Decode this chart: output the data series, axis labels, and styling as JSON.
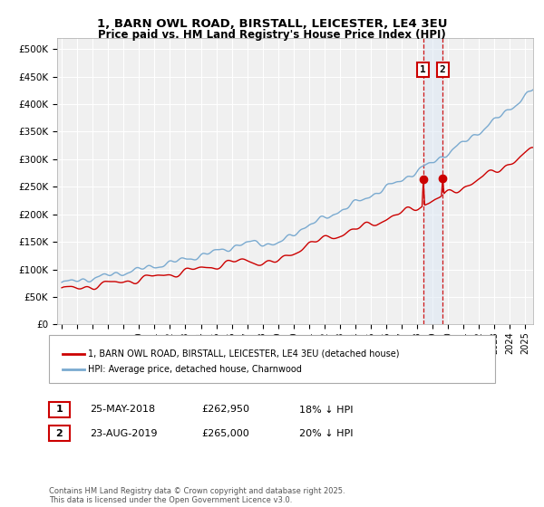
{
  "title": "1, BARN OWL ROAD, BIRSTALL, LEICESTER, LE4 3EU",
  "subtitle": "Price paid vs. HM Land Registry's House Price Index (HPI)",
  "legend_label_red": "1, BARN OWL ROAD, BIRSTALL, LEICESTER, LE4 3EU (detached house)",
  "legend_label_blue": "HPI: Average price, detached house, Charnwood",
  "transaction1_label": "1",
  "transaction1_date": "25-MAY-2018",
  "transaction1_price": "£262,950",
  "transaction1_hpi": "18% ↓ HPI",
  "transaction1_year": 2018.38,
  "transaction1_value": 262950,
  "transaction2_label": "2",
  "transaction2_date": "23-AUG-2019",
  "transaction2_price": "£265,000",
  "transaction2_hpi": "20% ↓ HPI",
  "transaction2_year": 2019.64,
  "transaction2_value": 265000,
  "footer": "Contains HM Land Registry data © Crown copyright and database right 2025.\nThis data is licensed under the Open Government Licence v3.0.",
  "ylim": [
    0,
    520000
  ],
  "yticks": [
    0,
    50000,
    100000,
    150000,
    200000,
    250000,
    300000,
    350000,
    400000,
    450000,
    500000
  ],
  "xlim_start": 1994.7,
  "xlim_end": 2025.5,
  "red_color": "#cc0000",
  "blue_color": "#7aaad0",
  "marker_color": "#cc0000",
  "vline_color": "#cc0000",
  "shade_color": "#dce8f5",
  "background_color": "#f0f0f0",
  "grid_color": "#ffffff"
}
